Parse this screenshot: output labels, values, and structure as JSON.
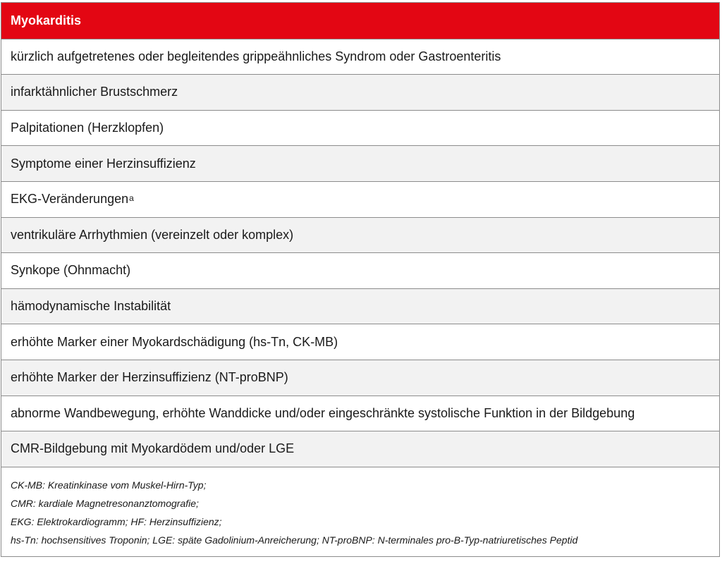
{
  "table": {
    "header": "Myokarditis",
    "rows": [
      {
        "text": "kürzlich aufgetretenes oder begleitendes grippeähnliches Syndrom oder Gastroenteritis"
      },
      {
        "text": "infarktähnlicher Brustschmerz"
      },
      {
        "text": "Palpitationen (Herzklopfen)"
      },
      {
        "text": "Symptome einer Herzinsuffizienz"
      },
      {
        "text": "EKG-Veränderungen",
        "superscript": "a"
      },
      {
        "text": "ventrikuläre Arrhythmien (vereinzelt oder komplex)"
      },
      {
        "text": "Synkope (Ohnmacht)"
      },
      {
        "text": "hämodynamische Instabilität"
      },
      {
        "text": "erhöhte Marker einer Myokardschädigung (hs-Tn, CK-MB)"
      },
      {
        "text": "erhöhte Marker der Herzinsuffizienz (NT-proBNP)"
      },
      {
        "text": "abnorme Wandbewegung, erhöhte Wanddicke und/oder eingeschränkte systolische Funktion in der Bildgebung"
      },
      {
        "text": "CMR-Bildgebung mit Myokardödem und/oder LGE"
      }
    ],
    "footnotes": [
      "CK-MB: Kreatinkinase vom Muskel-Hirn-Typ;",
      "CMR: kardiale Magnetresonanztomografie;",
      "EKG: Elektrokardiogramm; HF: Herzinsuffizienz;",
      "hs-Tn: hochsensitives Troponin; LGE: späte Gadolinium-Anreicherung; NT-proBNP: N-terminales pro-B-Typ-natriuretisches Peptid"
    ]
  }
}
